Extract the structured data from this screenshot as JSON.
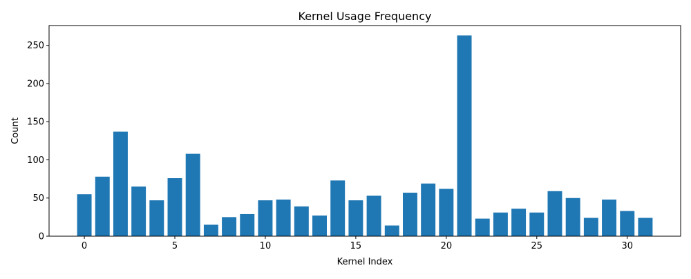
{
  "chart_data": {
    "type": "bar",
    "title": "Kernel Usage Frequency",
    "xlabel": "Kernel Index",
    "ylabel": "Count",
    "x": [
      0,
      1,
      2,
      3,
      4,
      5,
      6,
      7,
      8,
      9,
      10,
      11,
      12,
      13,
      14,
      15,
      16,
      17,
      18,
      19,
      20,
      21,
      22,
      23,
      24,
      25,
      26,
      27,
      28,
      29,
      30,
      31
    ],
    "values": [
      55,
      78,
      137,
      65,
      47,
      76,
      108,
      15,
      25,
      29,
      47,
      48,
      39,
      27,
      73,
      47,
      53,
      14,
      57,
      69,
      62,
      263,
      23,
      31,
      36,
      31,
      59,
      50,
      24,
      48,
      33,
      24
    ],
    "xlim": [
      -1.95,
      32.95
    ],
    "ylim": [
      0,
      276
    ],
    "xticks": [
      "0",
      "5",
      "10",
      "15",
      "20",
      "25",
      "30"
    ],
    "yticks": [
      "0",
      "50",
      "100",
      "150",
      "200",
      "250"
    ],
    "bar_color": "#1f77b4",
    "grid": false,
    "legend": "none"
  }
}
